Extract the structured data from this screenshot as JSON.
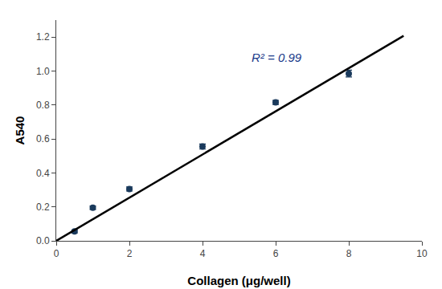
{
  "chart_data": {
    "type": "scatter",
    "xlabel": "Collagen (μg/well)",
    "ylabel": "A540",
    "series": [
      {
        "type": "scatter",
        "marker": "circle",
        "color": "#1a3a5c",
        "x": [
          0.5,
          1.0,
          2.0,
          4.0,
          6.0,
          8.0
        ],
        "values": [
          0.055,
          0.195,
          0.305,
          0.555,
          0.815,
          0.985
        ],
        "errors": [
          0.008,
          0.01,
          0.012,
          0.015,
          0.012,
          0.02
        ]
      },
      {
        "type": "line",
        "line_style": "solid",
        "color": "#000000",
        "x": [
          0.0,
          9.5
        ],
        "values": [
          0.0,
          1.207
        ]
      }
    ],
    "annotations": [
      {
        "text": "R² = 0.99",
        "x": 5.3,
        "y": 1.08,
        "color": "#1a3a8a"
      }
    ],
    "xlim": [
      0,
      10
    ],
    "ylim": [
      0,
      1.3
    ],
    "xticks": [
      0,
      2,
      4,
      6,
      8,
      10
    ],
    "yticks": [
      {
        "value": 0,
        "label": "0.0"
      },
      0.2,
      0.4,
      0.6,
      0.8,
      {
        "value": 1,
        "label": "1.0"
      },
      1.2
    ],
    "grid": false
  }
}
